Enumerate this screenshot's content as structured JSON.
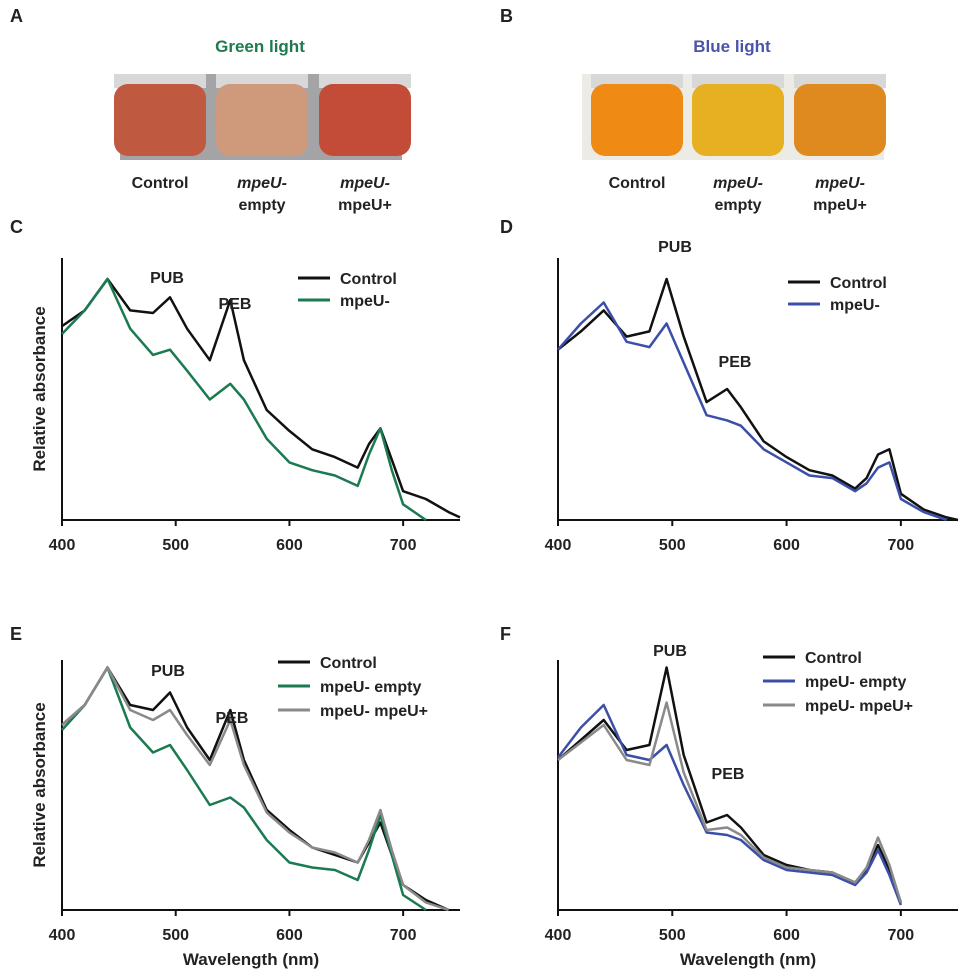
{
  "photo_panels": [
    {
      "panel_label": "A",
      "title": "Green light",
      "title_color": "#1f7a4d",
      "background": "#a4a4a6",
      "vial_colors": [
        "#bf5a40",
        "#cf9a7c",
        "#c24c38"
      ],
      "captions": [
        [
          "Control"
        ],
        [
          "mpeU-",
          "empty"
        ],
        [
          "mpeU-",
          "mpeU+"
        ]
      ]
    },
    {
      "panel_label": "B",
      "title": "Blue light",
      "title_color": "#4a55a8",
      "background": "#ecebe6",
      "vial_colors": [
        "#ef8a14",
        "#e6b022",
        "#de8a1e"
      ],
      "captions": [
        [
          "Control"
        ],
        [
          "mpeU-",
          "empty"
        ],
        [
          "mpeU-",
          "mpeU+"
        ]
      ]
    }
  ],
  "chart_data": [
    {
      "type": "line",
      "panel_label": "C",
      "ylabel": "Relative absorbance",
      "x": [
        400,
        420,
        440,
        460,
        480,
        495,
        510,
        530,
        548,
        560,
        580,
        600,
        620,
        640,
        660,
        670,
        680,
        690,
        700,
        720,
        740,
        750
      ],
      "xlim": [
        400,
        750
      ],
      "xticks": [
        400,
        500,
        600,
        700
      ],
      "ylim": [
        0,
        1
      ],
      "annotations": [
        "PUB",
        "PEB"
      ],
      "series": [
        {
          "name": "Control",
          "color": "#111111",
          "values": [
            0.74,
            0.8,
            0.92,
            0.8,
            0.79,
            0.85,
            0.73,
            0.61,
            0.84,
            0.61,
            0.42,
            0.34,
            0.27,
            0.24,
            0.2,
            0.29,
            0.35,
            0.23,
            0.11,
            0.08,
            0.03,
            0.01
          ]
        },
        {
          "name": "mpeU-",
          "color": "#1a7a50",
          "values": [
            0.71,
            0.8,
            0.92,
            0.73,
            0.63,
            0.65,
            0.57,
            0.46,
            0.52,
            0.46,
            0.31,
            0.22,
            0.19,
            0.17,
            0.13,
            0.25,
            0.35,
            0.19,
            0.06,
            0.0,
            null,
            null
          ]
        }
      ]
    },
    {
      "type": "line",
      "panel_label": "D",
      "x": [
        400,
        420,
        440,
        460,
        480,
        495,
        510,
        530,
        548,
        560,
        580,
        600,
        620,
        640,
        660,
        670,
        680,
        690,
        700,
        720,
        740,
        750
      ],
      "xlim": [
        400,
        750
      ],
      "xticks": [
        400,
        500,
        600,
        700
      ],
      "ylim": [
        0,
        1
      ],
      "annotations": [
        "PUB",
        "PEB"
      ],
      "series": [
        {
          "name": "Control",
          "color": "#111111",
          "values": [
            0.65,
            0.72,
            0.8,
            0.7,
            0.72,
            0.92,
            0.7,
            0.45,
            0.5,
            0.43,
            0.3,
            0.24,
            0.19,
            0.17,
            0.12,
            0.16,
            0.25,
            0.27,
            0.1,
            0.04,
            0.01,
            0.0
          ]
        },
        {
          "name": "mpeU-",
          "color": "#3b4fa8",
          "values": [
            0.65,
            0.75,
            0.83,
            0.68,
            0.66,
            0.75,
            0.6,
            0.4,
            0.38,
            0.36,
            0.27,
            0.22,
            0.17,
            0.16,
            0.11,
            0.14,
            0.2,
            0.22,
            0.08,
            0.03,
            0.0,
            null
          ]
        }
      ]
    },
    {
      "type": "line",
      "panel_label": "E",
      "ylabel": "Relative absorbance",
      "xlabel": "Wavelength (nm)",
      "x": [
        400,
        420,
        440,
        460,
        480,
        495,
        510,
        530,
        548,
        560,
        580,
        600,
        620,
        640,
        660,
        670,
        680,
        690,
        700,
        720,
        740,
        750
      ],
      "xlim": [
        400,
        750
      ],
      "xticks": [
        400,
        500,
        600,
        700
      ],
      "ylim": [
        0,
        1
      ],
      "annotations": [
        "PUB",
        "PEB"
      ],
      "series": [
        {
          "name": "Control",
          "color": "#111111",
          "values": [
            0.74,
            0.82,
            0.97,
            0.82,
            0.8,
            0.87,
            0.73,
            0.6,
            0.8,
            0.6,
            0.4,
            0.32,
            0.25,
            0.22,
            0.19,
            0.27,
            0.35,
            0.22,
            0.1,
            0.04,
            0.0,
            null
          ]
        },
        {
          "name": "mpeU- empty",
          "color": "#1a7a50",
          "values": [
            0.72,
            0.82,
            0.97,
            0.73,
            0.63,
            0.66,
            0.56,
            0.42,
            0.45,
            0.41,
            0.28,
            0.19,
            0.17,
            0.16,
            0.12,
            0.24,
            0.38,
            0.22,
            0.06,
            0.0,
            null,
            null
          ]
        },
        {
          "name": "mpeU- mpeU+",
          "color": "#8a8a8a",
          "values": [
            0.74,
            0.82,
            0.97,
            0.8,
            0.76,
            0.8,
            0.7,
            0.58,
            0.76,
            0.58,
            0.39,
            0.31,
            0.25,
            0.23,
            0.19,
            0.28,
            0.4,
            0.24,
            0.1,
            0.03,
            0.0,
            null
          ]
        }
      ]
    },
    {
      "type": "line",
      "panel_label": "F",
      "xlabel": "Wavelength (nm)",
      "x": [
        400,
        420,
        440,
        460,
        480,
        495,
        510,
        530,
        548,
        560,
        580,
        600,
        620,
        640,
        660,
        670,
        680,
        690,
        700,
        720,
        740,
        750
      ],
      "xlim": [
        400,
        750
      ],
      "xticks": [
        400,
        500,
        600,
        700
      ],
      "ylim": [
        0,
        1
      ],
      "annotations": [
        "PUB",
        "PEB"
      ],
      "series": [
        {
          "name": "Control",
          "color": "#111111",
          "values": [
            0.6,
            0.68,
            0.76,
            0.64,
            0.66,
            0.97,
            0.62,
            0.35,
            0.38,
            0.33,
            0.22,
            0.18,
            0.16,
            0.15,
            0.11,
            0.16,
            0.26,
            0.16,
            0.03,
            null,
            null,
            null
          ]
        },
        {
          "name": "mpeU- empty",
          "color": "#3b4fa8",
          "values": [
            0.61,
            0.73,
            0.82,
            0.62,
            0.6,
            0.66,
            0.5,
            0.31,
            0.3,
            0.28,
            0.2,
            0.16,
            0.15,
            0.14,
            0.1,
            0.15,
            0.24,
            0.14,
            0.02,
            null,
            null,
            null
          ]
        },
        {
          "name": "mpeU- mpeU+",
          "color": "#8a8a8a",
          "values": [
            0.6,
            0.67,
            0.74,
            0.6,
            0.58,
            0.83,
            0.55,
            0.32,
            0.33,
            0.3,
            0.21,
            0.17,
            0.16,
            0.15,
            0.11,
            0.17,
            0.29,
            0.18,
            0.03,
            null,
            null,
            null
          ]
        }
      ]
    }
  ]
}
